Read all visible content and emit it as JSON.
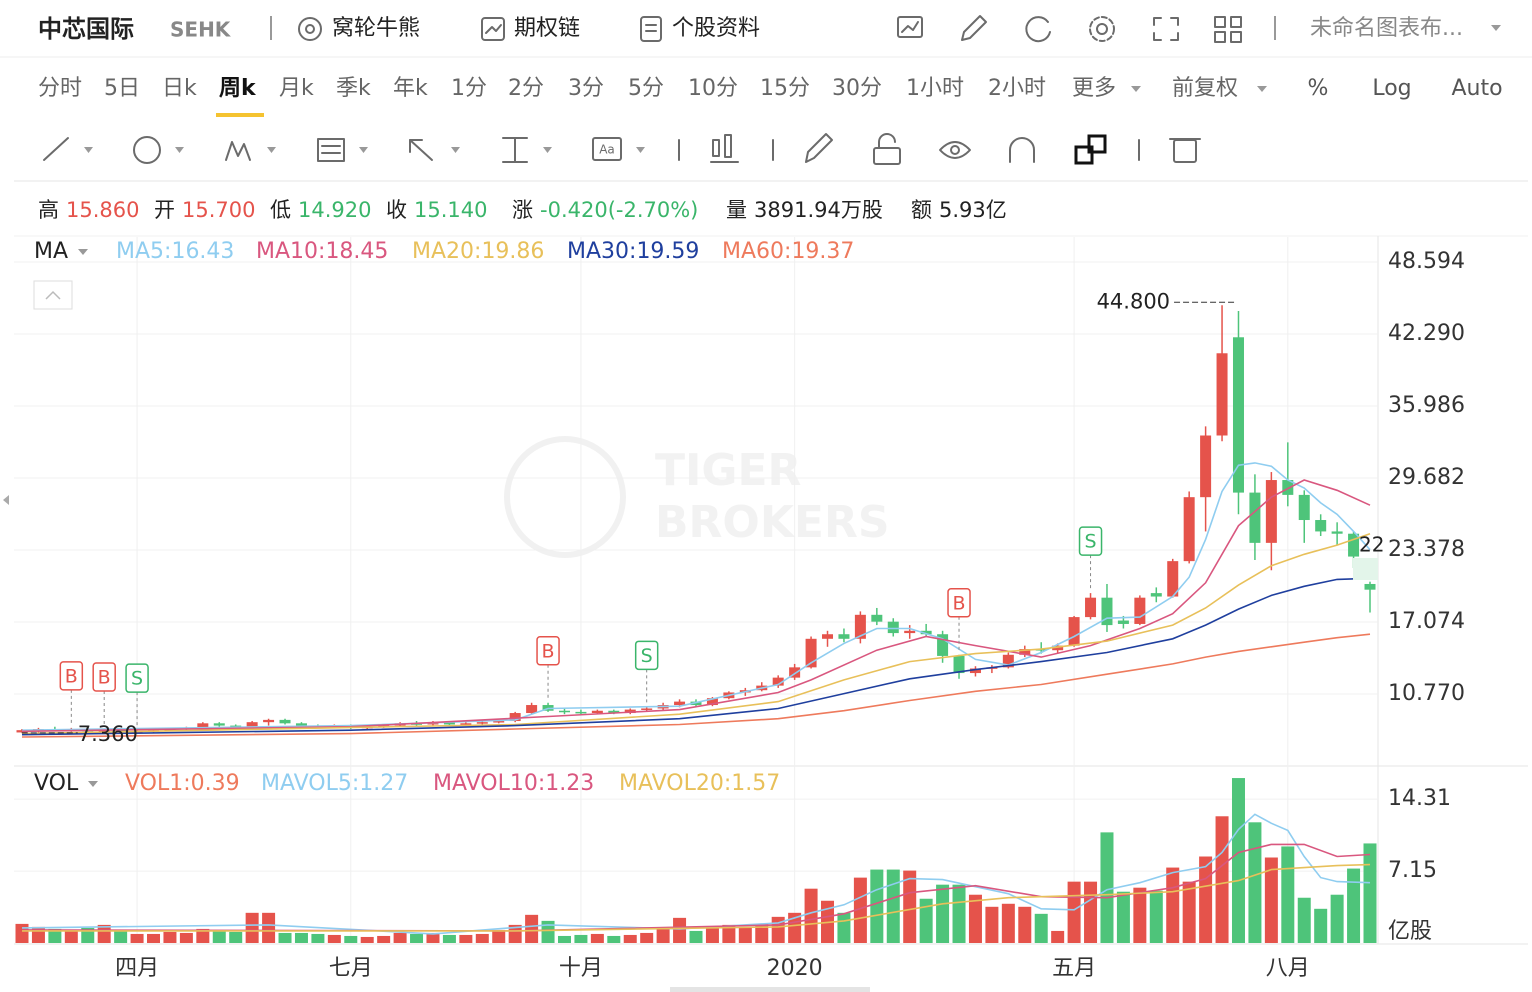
{
  "header": {
    "title": "中芯国际",
    "code": "SEHK",
    "links": [
      "窝轮牛熊",
      "期权链",
      "个股资料"
    ],
    "layout": "未命名图表布..."
  },
  "periods": {
    "items": [
      "分时",
      "5日",
      "日k",
      "周k",
      "月k",
      "季k",
      "年k",
      "1分",
      "2分",
      "3分",
      "5分",
      "10分",
      "15分",
      "30分",
      "1小时",
      "2小时"
    ],
    "active": 3,
    "more": "更多",
    "adjust": "前复权",
    "toggles": [
      "%",
      "Log",
      "Auto"
    ]
  },
  "quote": [
    {
      "label": "高",
      "value": "15.860",
      "color": "#e5534b"
    },
    {
      "label": "开",
      "value": "15.700",
      "color": "#e5534b"
    },
    {
      "label": "低",
      "value": "14.920",
      "color": "#3ab56a"
    },
    {
      "label": "收",
      "value": "15.140",
      "color": "#3ab56a"
    },
    {
      "label": "涨",
      "value": "-0.420(-2.70%)",
      "color": "#3ab56a"
    },
    {
      "label": "量",
      "value": "3891.94万股",
      "color": "#222222"
    },
    {
      "label": "额",
      "value": "5.93亿",
      "color": "#222222"
    }
  ],
  "chart_data": [
    {
      "type": "candlestick",
      "indicator": "MA",
      "categories": [
        null,
        null,
        null,
        null,
        null,
        null,
        null,
        "四月",
        null,
        null,
        null,
        null,
        null,
        null,
        null,
        null,
        null,
        null,
        null,
        null,
        "七月",
        null,
        null,
        null,
        null,
        null,
        null,
        null,
        null,
        null,
        null,
        null,
        null,
        null,
        "十月",
        null,
        null,
        null,
        null,
        null,
        null,
        null,
        null,
        null,
        null,
        null,
        null,
        "2020",
        null,
        null,
        null,
        null,
        null,
        null,
        null,
        null,
        null,
        null,
        null,
        null,
        null,
        null,
        null,
        null,
        "五月",
        null,
        null,
        null,
        null,
        null,
        null,
        null,
        null,
        null,
        null,
        null,
        null,
        "八月",
        null,
        null,
        null,
        null,
        null
      ],
      "open": [
        7.4,
        7.6,
        7.7,
        7.6,
        7.7,
        7.5,
        7.6,
        7.5,
        7.5,
        7.6,
        7.7,
        7.8,
        8.2,
        8.0,
        7.9,
        8.3,
        8.5,
        8.2,
        8.0,
        7.9,
        8.0,
        7.8,
        7.9,
        8.0,
        8.2,
        8.1,
        8.3,
        8.1,
        8.2,
        8.3,
        8.4,
        9.1,
        9.8,
        9.3,
        9.2,
        9.1,
        9.3,
        9.1,
        9.4,
        9.5,
        9.8,
        10.1,
        9.8,
        10.4,
        10.9,
        11.1,
        11.5,
        12.2,
        13.1,
        15.6,
        16.0,
        15.6,
        17.7,
        17.1,
        16.1,
        16.3,
        16.0,
        14.1,
        12.6,
        13.0,
        13.1,
        14.2,
        14.7,
        14.6,
        15.0,
        17.5,
        19.2,
        17.2,
        16.9,
        19.6,
        19.3,
        22.4,
        28.0,
        33.4,
        42.0,
        28.4,
        24.0,
        29.5,
        28.2,
        26.0,
        25.0,
        24.8,
        20.4
      ],
      "high": [
        7.7,
        7.8,
        7.9,
        7.8,
        7.8,
        7.7,
        7.7,
        7.6,
        7.7,
        7.8,
        7.9,
        8.3,
        8.3,
        8.1,
        8.4,
        8.6,
        8.6,
        8.3,
        8.1,
        8.1,
        8.1,
        8.0,
        8.1,
        8.3,
        8.4,
        8.4,
        8.4,
        8.3,
        8.4,
        8.5,
        9.2,
        10.0,
        10.0,
        9.5,
        9.4,
        9.4,
        9.4,
        9.5,
        9.6,
        10.0,
        10.3,
        10.3,
        10.5,
        11.0,
        11.3,
        11.8,
        12.4,
        13.4,
        15.8,
        16.3,
        16.5,
        18.0,
        18.3,
        17.4,
        16.8,
        16.9,
        16.3,
        14.2,
        13.2,
        13.3,
        14.4,
        15.0,
        15.3,
        15.2,
        17.6,
        19.6,
        20.4,
        17.6,
        19.4,
        20.1,
        22.6,
        28.5,
        34.2,
        44.8,
        44.3,
        30.0,
        30.2,
        32.8,
        28.6,
        26.5,
        25.8,
        25.0,
        20.6
      ],
      "low": [
        7.38,
        7.4,
        7.5,
        7.45,
        7.36,
        7.4,
        7.4,
        7.4,
        7.4,
        7.5,
        7.6,
        7.7,
        7.9,
        7.8,
        7.8,
        8.0,
        8.1,
        7.9,
        7.8,
        7.8,
        7.7,
        7.7,
        7.8,
        7.9,
        8.0,
        8.0,
        8.0,
        8.0,
        8.1,
        8.2,
        8.3,
        9.0,
        9.2,
        9.0,
        9.0,
        9.0,
        9.0,
        9.0,
        9.2,
        9.3,
        9.6,
        9.7,
        9.7,
        10.3,
        10.6,
        11.0,
        11.3,
        12.0,
        13.0,
        14.9,
        15.3,
        15.2,
        16.8,
        15.8,
        15.6,
        15.8,
        13.5,
        12.1,
        12.3,
        12.6,
        13.0,
        14.0,
        14.3,
        14.3,
        14.9,
        17.3,
        16.2,
        16.5,
        16.8,
        18.8,
        19.2,
        22.2,
        25.0,
        32.9,
        26.5,
        22.5,
        21.6,
        27.2,
        24.0,
        24.6,
        23.8,
        21.8,
        17.9
      ],
      "close": [
        7.6,
        7.7,
        7.6,
        7.7,
        7.5,
        7.6,
        7.5,
        7.5,
        7.6,
        7.7,
        7.8,
        8.2,
        8.0,
        7.9,
        8.3,
        8.5,
        8.2,
        8.0,
        7.9,
        8.0,
        7.8,
        7.9,
        8.0,
        8.2,
        8.1,
        8.3,
        8.1,
        8.2,
        8.3,
        8.4,
        9.1,
        9.8,
        9.3,
        9.2,
        9.1,
        9.3,
        9.1,
        9.4,
        9.5,
        9.8,
        10.1,
        9.8,
        10.4,
        10.9,
        11.1,
        11.5,
        12.2,
        13.1,
        15.6,
        16.0,
        15.6,
        17.7,
        17.1,
        16.1,
        16.3,
        16.0,
        14.1,
        12.6,
        13.0,
        13.1,
        14.2,
        14.7,
        14.6,
        15.0,
        17.5,
        19.2,
        16.8,
        16.9,
        19.2,
        19.3,
        22.4,
        28.0,
        33.4,
        40.6,
        28.4,
        24.0,
        29.5,
        28.2,
        26.0,
        25.0,
        24.8,
        22.8,
        19.9
      ],
      "up_color": "#e5534b",
      "down_color": "#4ec47a",
      "ylim": [
        4.55,
        50.78
      ],
      "yticks": [
        {
          "value": 10.77,
          "label": "10.770"
        },
        17.074,
        23.378,
        29.682,
        35.986,
        {
          "value": 42.29,
          "label": "42.290"
        },
        48.594
      ],
      "grid": true,
      "series": [
        {
          "name": "MA5:16.43",
          "color": "#8fcdf0",
          "x": [
            0,
            10,
            20,
            30,
            32,
            40,
            46,
            48,
            50,
            52,
            54,
            56,
            58,
            60,
            62,
            64,
            66,
            68,
            70,
            71,
            72,
            73,
            74,
            75,
            76,
            77,
            78,
            79,
            80,
            81,
            82
          ],
          "values": [
            7.6,
            7.8,
            8.0,
            8.5,
            9.5,
            9.7,
            11.6,
            13.5,
            15.2,
            16.5,
            16.5,
            15.6,
            13.8,
            13.3,
            14.4,
            15.8,
            17.4,
            17.5,
            19.3,
            21.0,
            24.3,
            28.5,
            30.8,
            31.0,
            30.7,
            29.5,
            28.8,
            27.5,
            26.5,
            25.0,
            23.4
          ]
        },
        {
          "name": "MA10:18.45",
          "color": "#d9577f",
          "x": [
            0,
            20,
            32,
            40,
            46,
            48,
            52,
            55,
            58,
            62,
            65,
            68,
            70,
            72,
            74,
            76,
            78,
            80,
            82
          ],
          "values": [
            7.5,
            7.9,
            8.8,
            9.4,
            10.9,
            12.0,
            14.6,
            15.8,
            15.0,
            14.0,
            15.0,
            16.5,
            17.8,
            20.5,
            25.5,
            28.0,
            29.5,
            28.6,
            27.3
          ]
        },
        {
          "name": "MA20:19.86",
          "color": "#e8c05a",
          "x": [
            0,
            30,
            40,
            46,
            50,
            54,
            58,
            62,
            66,
            70,
            72,
            74,
            76,
            78,
            80,
            82
          ],
          "values": [
            7.3,
            8.1,
            9.0,
            10.1,
            12.0,
            13.6,
            14.3,
            14.7,
            15.4,
            16.8,
            18.3,
            20.3,
            22.0,
            23.0,
            23.8,
            24.8
          ]
        },
        {
          "name": "MA30:19.59",
          "color": "#1f3f9e",
          "x": [
            0,
            20,
            30,
            40,
            46,
            50,
            54,
            58,
            62,
            66,
            70,
            72,
            74,
            76,
            78,
            80,
            82
          ],
          "values": [
            7.2,
            7.6,
            8.0,
            8.6,
            9.5,
            10.8,
            12.1,
            12.9,
            13.6,
            14.4,
            15.6,
            16.8,
            18.2,
            19.4,
            20.2,
            20.8,
            20.9
          ]
        },
        {
          "name": "MA60:19.37",
          "color": "#ee7a5c",
          "x": [
            0,
            20,
            30,
            40,
            46,
            50,
            54,
            58,
            62,
            66,
            70,
            72,
            74,
            76,
            78,
            80,
            82
          ],
          "values": [
            7.0,
            7.3,
            7.7,
            8.1,
            8.6,
            9.3,
            10.2,
            11.0,
            11.6,
            12.5,
            13.4,
            14.0,
            14.5,
            14.9,
            15.3,
            15.7,
            16.0
          ]
        }
      ],
      "max_label": {
        "x": 73,
        "value": 44.8,
        "label": "44.800"
      },
      "min_label": {
        "x": 4,
        "value": 7.36,
        "label": "7.360"
      },
      "signals": [
        {
          "x": 3,
          "label": "B",
          "color": "#e5534b"
        },
        {
          "x": 5,
          "label": "B",
          "color": "#e5534b"
        },
        {
          "x": 7,
          "label": "S",
          "color": "#3ab56a"
        },
        {
          "x": 32,
          "label": "B",
          "color": "#e5534b"
        },
        {
          "x": 38,
          "label": "S",
          "color": "#3ab56a"
        },
        {
          "x": 57,
          "label": "B",
          "color": "#e5534b"
        },
        {
          "x": 65,
          "label": "S",
          "color": "#3ab56a"
        }
      ],
      "price_tag": "22",
      "watermark": [
        "TIGER",
        "BROKERS"
      ]
    },
    {
      "type": "bar",
      "indicator": "VOL",
      "value_legend": {
        "label": "VOL1:0.39",
        "color": "#ee7a5c"
      },
      "values": [
        1.9,
        1.6,
        1.4,
        1.2,
        1.5,
        1.8,
        1.3,
        0.9,
        0.9,
        1.1,
        1.0,
        1.4,
        1.2,
        1.1,
        3.0,
        3.0,
        1.0,
        1.0,
        0.9,
        0.8,
        0.7,
        0.6,
        0.7,
        1.0,
        0.9,
        1.0,
        0.8,
        0.8,
        0.9,
        1.3,
        1.8,
        2.8,
        2.2,
        0.7,
        0.8,
        0.9,
        0.7,
        0.8,
        1.0,
        1.5,
        2.5,
        1.2,
        1.5,
        1.8,
        1.5,
        1.9,
        2.6,
        3.0,
        5.4,
        4.2,
        3.0,
        6.5,
        7.3,
        7.3,
        7.2,
        4.4,
        5.8,
        5.8,
        4.8,
        3.6,
        3.9,
        3.6,
        2.9,
        1.2,
        6.1,
        6.1,
        11.0,
        5.1,
        5.5,
        5.2,
        7.5,
        6.1,
        8.6,
        12.6,
        16.4,
        12.0,
        8.5,
        9.6,
        4.5,
        3.4,
        4.8,
        7.4,
        9.9
      ],
      "ylim": [
        0,
        17.4
      ],
      "yticks": [
        7.15,
        14.31
      ],
      "unit": "亿股",
      "grid": true,
      "series": [
        {
          "name": "MAVOL5:1.27",
          "color": "#8fcdf0",
          "x": [
            0,
            15,
            25,
            32,
            40,
            46,
            48,
            50,
            52,
            54,
            56,
            58,
            60,
            62,
            64,
            66,
            68,
            70,
            72,
            73,
            74,
            75,
            76,
            77,
            78,
            79,
            80,
            82
          ],
          "values": [
            1.5,
            1.8,
            0.9,
            1.8,
            1.4,
            2.0,
            3.0,
            3.8,
            5.3,
            6.4,
            6.3,
            5.6,
            4.9,
            3.4,
            3.3,
            5.3,
            6.0,
            7.0,
            7.6,
            9.0,
            11.3,
            12.8,
            11.9,
            11.2,
            8.6,
            6.5,
            6.1,
            6.0
          ]
        },
        {
          "name": "MAVOL10:1.23",
          "color": "#d9577f",
          "x": [
            0,
            30,
            46,
            50,
            54,
            58,
            62,
            66,
            70,
            72,
            74,
            76,
            78,
            80,
            82
          ],
          "values": [
            1.3,
            1.2,
            1.8,
            2.9,
            5.0,
            5.7,
            4.6,
            4.5,
            5.5,
            6.4,
            9.0,
            9.8,
            9.8,
            8.6,
            8.8
          ]
        },
        {
          "name": "MAVOL20:1.57",
          "color": "#e8c05a",
          "x": [
            0,
            30,
            46,
            50,
            56,
            60,
            66,
            70,
            74,
            76,
            78,
            80,
            82
          ],
          "values": [
            1.2,
            1.2,
            1.6,
            2.2,
            3.9,
            4.5,
            4.8,
            5.1,
            6.2,
            7.3,
            7.5,
            7.7,
            7.8
          ]
        }
      ]
    }
  ]
}
